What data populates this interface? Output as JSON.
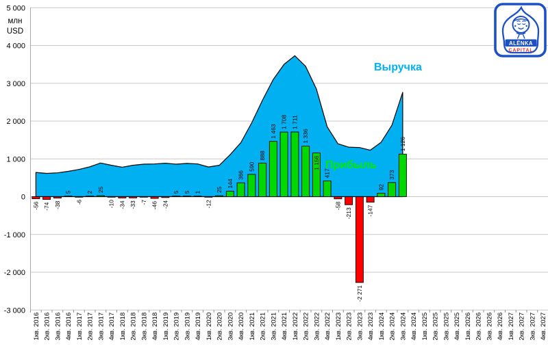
{
  "logo": {
    "line1": "ALЁNKA",
    "line2": "CAPITAL",
    "blue": "#1c50c3",
    "red": "#e53028"
  },
  "chart_data": {
    "type": "combo",
    "unit": {
      "line1": "млн",
      "line2": "USD"
    },
    "grid": true,
    "y_axis": {
      "min": -3000,
      "max": 5000,
      "step": 1000
    },
    "categories": [
      "1кв. 2016",
      "2кв. 2016",
      "3кв. 2016",
      "4кв. 2016",
      "1кв. 2017",
      "2кв. 2017",
      "3кв. 2017",
      "4кв. 2017",
      "1кв. 2018",
      "2кв. 2018",
      "3кв. 2018",
      "4кв. 2018",
      "1кв. 2019",
      "2кв. 2019",
      "3кв. 2019",
      "4кв. 2019",
      "1кв. 2020",
      "2кв. 2020",
      "3кв. 2020",
      "4кв. 2020",
      "1кв. 2021",
      "2кв. 2021",
      "3кв. 2021",
      "4кв. 2021",
      "1кв. 2022",
      "2кв. 2022",
      "3кв. 2022",
      "4кв. 2022",
      "1кв. 2023",
      "2кв. 2023",
      "3кв. 2023",
      "4кв. 2023",
      "1кв. 2024",
      "2кв. 2024",
      "3кв. 2024",
      "4кв. 2024",
      "1кв. 2025",
      "2кв. 2025",
      "3кв. 2025",
      "4кв. 2025",
      "1кв. 2026",
      "2кв. 2026",
      "3кв. 2026",
      "4кв. 2026",
      "1кв. 2027",
      "2кв. 2027",
      "3кв. 2027",
      "4кв. 2027"
    ],
    "series": [
      {
        "name": "Выручка",
        "type": "area",
        "color": "#00b0f0",
        "label_pos": {
          "x": 546,
          "y": 103
        },
        "values": [
          640,
          615,
          630,
          670,
          720,
          790,
          890,
          830,
          780,
          830,
          860,
          865,
          885,
          860,
          880,
          865,
          785,
          830,
          1110,
          1430,
          1950,
          2550,
          3100,
          3500,
          3730,
          3450,
          2850,
          1850,
          1400,
          1310,
          1300,
          1230,
          1440,
          1890,
          2760
        ]
      },
      {
        "name": "Прибыль",
        "type": "bar",
        "color_pos": "#00d900",
        "color_neg": "#fe0000",
        "label_color": "#00ea00",
        "label_pos": {
          "x": 475,
          "y": 246
        },
        "show_value_labels": true,
        "label_inside_indices": [
          26
        ],
        "values": [
          -56,
          -74,
          -38,
          5,
          -6,
          2,
          25,
          -10,
          -34,
          -33,
          -7,
          -46,
          -24,
          5,
          5,
          1,
          -12,
          25,
          144,
          366,
          590,
          888,
          1463,
          1708,
          1711,
          1336,
          1156,
          417,
          -58,
          -213,
          -2271,
          -147,
          92,
          373,
          1126
        ]
      }
    ]
  }
}
